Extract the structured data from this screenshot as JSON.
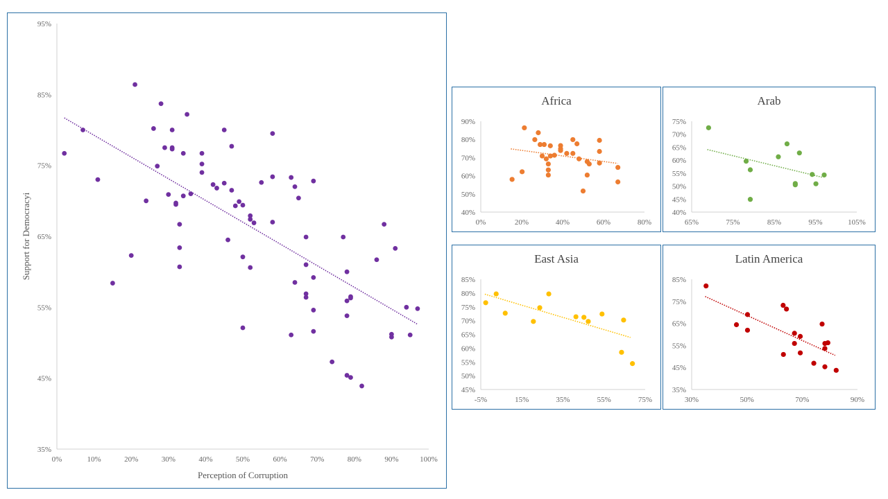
{
  "chart_data": [
    {
      "id": "main",
      "type": "scatter",
      "title": "",
      "xlabel": "Perception of Corruption",
      "ylabel": "Support for Democracyi",
      "xlim": [
        0,
        100
      ],
      "ylim": [
        35,
        95
      ],
      "xticks": [
        "0%",
        "10%",
        "20%",
        "30%",
        "40%",
        "50%",
        "60%",
        "70%",
        "80%",
        "90%",
        "100%"
      ],
      "yticks": [
        "35%",
        "45%",
        "55%",
        "65%",
        "75%",
        "85%",
        "95%"
      ],
      "color": "#7030a0",
      "grid": false,
      "trendline": {
        "x": [
          2,
          97
        ],
        "y": [
          81.7,
          52.6
        ]
      },
      "points": [
        [
          2,
          76.7
        ],
        [
          7,
          80
        ],
        [
          11,
          73
        ],
        [
          15,
          58.4
        ],
        [
          20,
          62.3
        ],
        [
          21,
          86.4
        ],
        [
          24,
          70
        ],
        [
          26,
          80.2
        ],
        [
          27,
          74.9
        ],
        [
          28,
          83.7
        ],
        [
          29,
          77.5
        ],
        [
          30,
          70.9
        ],
        [
          31,
          80
        ],
        [
          31,
          77.5
        ],
        [
          31,
          77.3
        ],
        [
          32,
          69.7
        ],
        [
          32,
          69.5
        ],
        [
          33,
          66.7
        ],
        [
          33,
          63.4
        ],
        [
          33,
          60.7
        ],
        [
          34,
          76.7
        ],
        [
          34,
          70.7
        ],
        [
          35,
          82.2
        ],
        [
          36,
          71
        ],
        [
          39,
          76.7
        ],
        [
          39,
          75.2
        ],
        [
          39,
          74
        ],
        [
          42,
          72.3
        ],
        [
          43,
          71.8
        ],
        [
          45,
          72.5
        ],
        [
          45,
          80
        ],
        [
          46,
          64.5
        ],
        [
          47,
          77.7
        ],
        [
          47,
          71.5
        ],
        [
          48,
          69.3
        ],
        [
          49,
          69.9
        ],
        [
          50,
          69.4
        ],
        [
          50,
          62.1
        ],
        [
          50,
          52.1
        ],
        [
          52,
          67.9
        ],
        [
          52,
          67.4
        ],
        [
          52,
          60.6
        ],
        [
          53,
          66.9
        ],
        [
          55,
          72.6
        ],
        [
          58,
          79.5
        ],
        [
          58,
          73.4
        ],
        [
          58,
          67
        ],
        [
          63,
          73.3
        ],
        [
          63,
          51.1
        ],
        [
          64,
          72
        ],
        [
          64,
          58.5
        ],
        [
          65,
          70.4
        ],
        [
          67,
          64.9
        ],
        [
          67,
          61
        ],
        [
          67,
          56.9
        ],
        [
          67,
          56.4
        ],
        [
          69,
          72.8
        ],
        [
          69,
          59.2
        ],
        [
          69,
          54.6
        ],
        [
          69,
          51.6
        ],
        [
          74,
          47.3
        ],
        [
          77,
          64.9
        ],
        [
          78,
          60
        ],
        [
          78,
          55.9
        ],
        [
          78,
          53.8
        ],
        [
          78,
          45.4
        ],
        [
          79,
          56.5
        ],
        [
          79,
          56.3
        ],
        [
          79,
          45.1
        ],
        [
          82,
          43.9
        ],
        [
          86,
          61.7
        ],
        [
          88,
          66.7
        ],
        [
          90,
          51.2
        ],
        [
          90,
          50.8
        ],
        [
          91,
          63.3
        ],
        [
          94,
          55
        ],
        [
          95,
          51.1
        ],
        [
          97,
          54.8
        ]
      ]
    },
    {
      "id": "africa",
      "type": "scatter",
      "title": "Africa",
      "xlim": [
        0,
        80
      ],
      "ylim": [
        40,
        90
      ],
      "xticks": [
        "0%",
        "20%",
        "40%",
        "60%",
        "80%"
      ],
      "yticks": [
        "40%",
        "50%",
        "60%",
        "70%",
        "80%",
        "90%"
      ],
      "color": "#ed7d31",
      "grid": false,
      "trendline": {
        "x": [
          14.7,
          66.9
        ],
        "y": [
          74.8,
          66.8
        ]
      },
      "points": [
        [
          15.3,
          58
        ],
        [
          20.2,
          62.2
        ],
        [
          21.3,
          86.4
        ],
        [
          26.4,
          79.9
        ],
        [
          28.1,
          83.7
        ],
        [
          29,
          77.2
        ],
        [
          31,
          77.2
        ],
        [
          30,
          70.9
        ],
        [
          32,
          69.3
        ],
        [
          33,
          66.5
        ],
        [
          33,
          63.2
        ],
        [
          33,
          60.4
        ],
        [
          34,
          76.5
        ],
        [
          34,
          70.9
        ],
        [
          36,
          71.3
        ],
        [
          39,
          76.6
        ],
        [
          39,
          74.9
        ],
        [
          39,
          73.9
        ],
        [
          42,
          72.3
        ],
        [
          45,
          79.9
        ],
        [
          45,
          72.3
        ],
        [
          47,
          77.6
        ],
        [
          48,
          69.3
        ],
        [
          50,
          51.6
        ],
        [
          52,
          60.4
        ],
        [
          52,
          67.8
        ],
        [
          53,
          66.5
        ],
        [
          58,
          79.5
        ],
        [
          58,
          73.4
        ],
        [
          58,
          67
        ],
        [
          67,
          64.6
        ],
        [
          67,
          56.6
        ]
      ]
    },
    {
      "id": "arab",
      "type": "scatter",
      "title": "Arab",
      "xlim": [
        65,
        105
      ],
      "ylim": [
        40,
        75
      ],
      "xticks": [
        "65%",
        "75%",
        "85%",
        "95%",
        "105%"
      ],
      "yticks": [
        "40%",
        "45%",
        "50%",
        "55%",
        "60%",
        "65%",
        "70%",
        "75%"
      ],
      "color": "#70ad47",
      "grid": false,
      "trendline": {
        "x": [
          68.8,
          96.7
        ],
        "y": [
          64.1,
          53.4
        ]
      },
      "points": [
        [
          69.1,
          72.5
        ],
        [
          78.2,
          59.6
        ],
        [
          79.2,
          56.3
        ],
        [
          79.2,
          44.9
        ],
        [
          86,
          61.3
        ],
        [
          88.1,
          66.3
        ],
        [
          90.1,
          51
        ],
        [
          90.1,
          50.5
        ],
        [
          91.1,
          62.8
        ],
        [
          94.2,
          54.5
        ],
        [
          95.1,
          50.9
        ],
        [
          97.1,
          54.3
        ]
      ]
    },
    {
      "id": "east-asia",
      "type": "scatter",
      "title": "East Asia",
      "xlim": [
        -5,
        75
      ],
      "ylim": [
        45,
        85
      ],
      "xticks": [
        "-5%",
        "15%",
        "35%",
        "55%",
        "75%"
      ],
      "yticks": [
        "45%",
        "50%",
        "55%",
        "60%",
        "65%",
        "70%",
        "75%",
        "80%",
        "85%"
      ],
      "color": "#ffc000",
      "grid": false,
      "trendline": {
        "x": [
          -3,
          67.8
        ],
        "y": [
          79.6,
          63.9
        ]
      },
      "points": [
        [
          -2.6,
          76.5
        ],
        [
          2.5,
          79.7
        ],
        [
          6.9,
          72.7
        ],
        [
          20.6,
          69.7
        ],
        [
          23.7,
          74.7
        ],
        [
          28.1,
          79.7
        ],
        [
          41.3,
          71.4
        ],
        [
          45.2,
          71.2
        ],
        [
          47.3,
          69.7
        ],
        [
          54,
          72.4
        ],
        [
          63.5,
          58.5
        ],
        [
          64.5,
          70.2
        ],
        [
          68.8,
          54.4
        ]
      ]
    },
    {
      "id": "latin-america",
      "type": "scatter",
      "title": "Latin America",
      "xlim": [
        30,
        90
      ],
      "ylim": [
        35,
        85
      ],
      "xticks": [
        "30%",
        "50%",
        "70%",
        "90%"
      ],
      "yticks": [
        "35%",
        "45%",
        "55%",
        "65%",
        "75%",
        "85%"
      ],
      "color": "#c00000",
      "grid": false,
      "trendline": {
        "x": [
          34.9,
          81.9
        ],
        "y": [
          77.2,
          50.5
        ]
      },
      "points": [
        [
          35.2,
          82
        ],
        [
          46.2,
          64.4
        ],
        [
          50.2,
          69
        ],
        [
          50.2,
          61.9
        ],
        [
          63.1,
          73.2
        ],
        [
          64.3,
          71.5
        ],
        [
          67.2,
          60.5
        ],
        [
          67.2,
          55.9
        ],
        [
          69.3,
          59.1
        ],
        [
          63.2,
          50.9
        ],
        [
          69.3,
          51.6
        ],
        [
          74.2,
          46.9
        ],
        [
          77.2,
          64.7
        ],
        [
          78.2,
          55.9
        ],
        [
          79.3,
          56.2
        ],
        [
          78.2,
          53.6
        ],
        [
          78.2,
          45.3
        ],
        [
          82.3,
          43.7
        ]
      ]
    }
  ]
}
